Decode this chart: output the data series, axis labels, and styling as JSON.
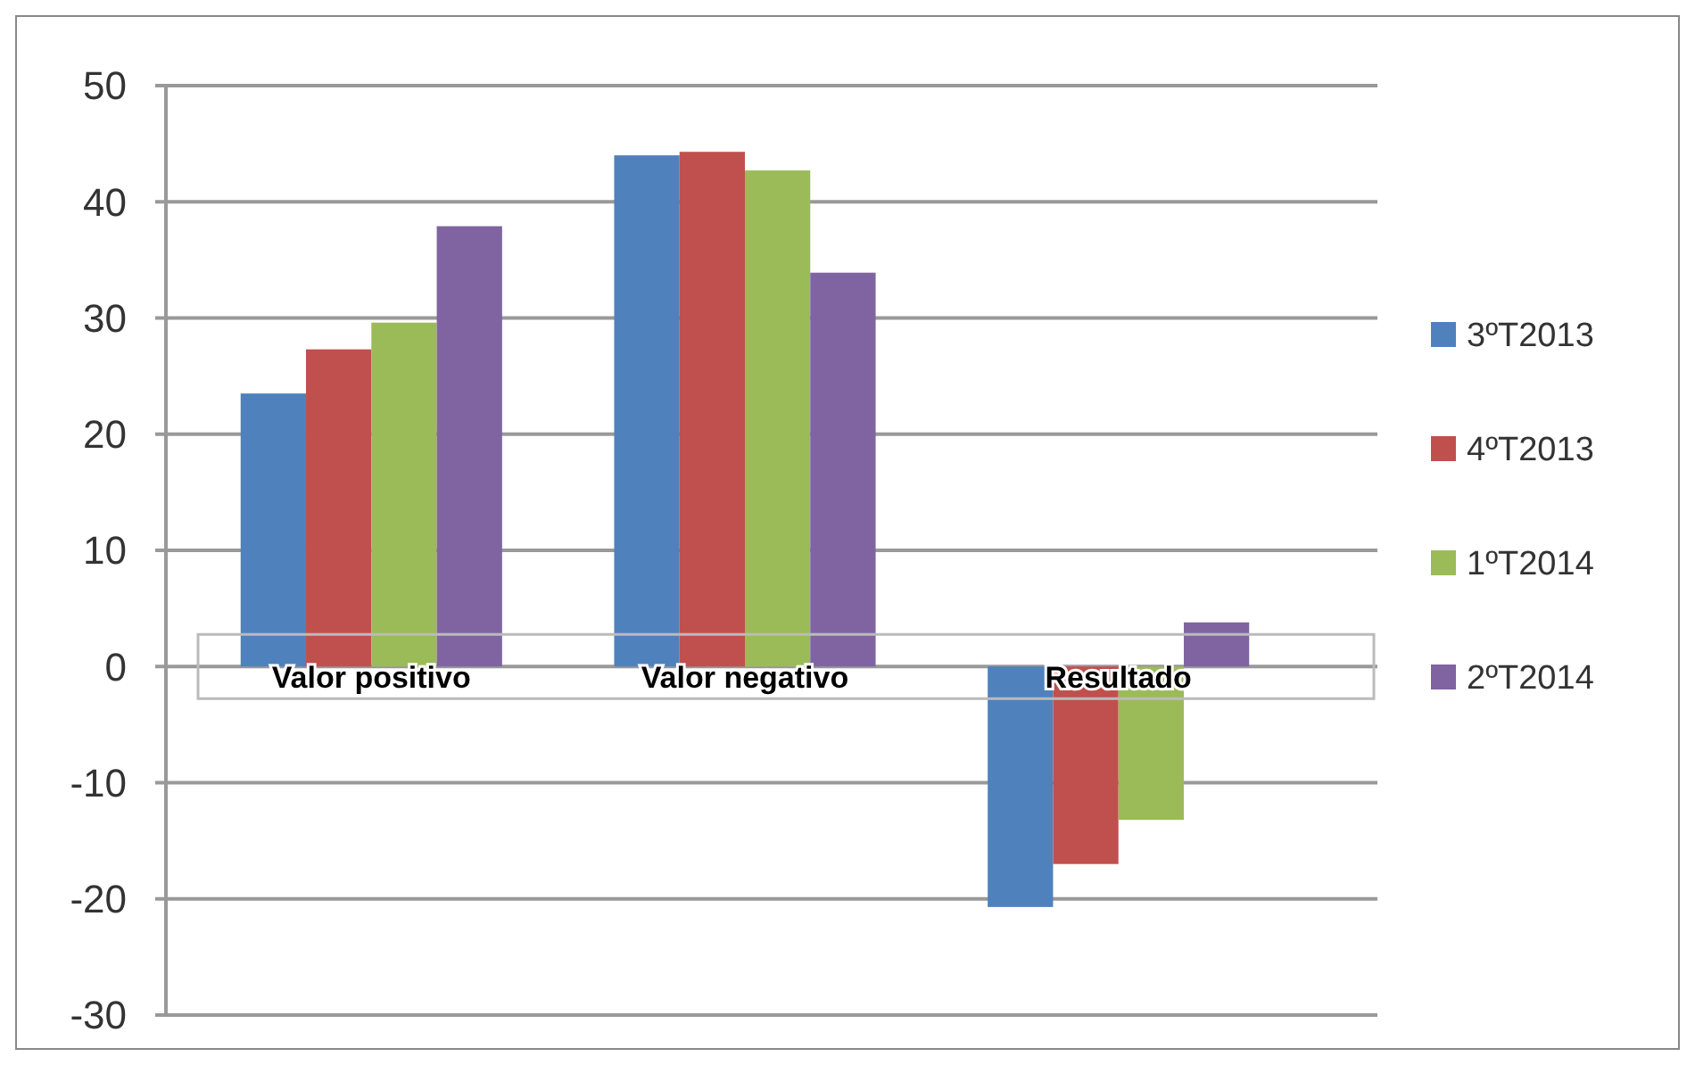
{
  "chart_data": {
    "type": "bar",
    "categories": [
      "Valor positivo",
      "Valor negativo",
      "Resultado"
    ],
    "series": [
      {
        "name": "3ºT2013",
        "color": "#4f81bd",
        "values": [
          23.5,
          44,
          -20.7
        ]
      },
      {
        "name": "4ºT2013",
        "color": "#c0504d",
        "values": [
          27.3,
          44.3,
          -17
        ]
      },
      {
        "name": "1ºT2014",
        "color": "#9bbb59",
        "values": [
          29.6,
          42.7,
          -13.2
        ]
      },
      {
        "name": "2ºT2014",
        "color": "#8064a2",
        "values": [
          37.9,
          33.9,
          3.8
        ]
      }
    ],
    "ylim": [
      -30,
      50
    ],
    "yticks": [
      -30,
      -20,
      -10,
      0,
      10,
      20,
      30,
      40,
      50
    ],
    "grid": "y",
    "legend": "right"
  }
}
